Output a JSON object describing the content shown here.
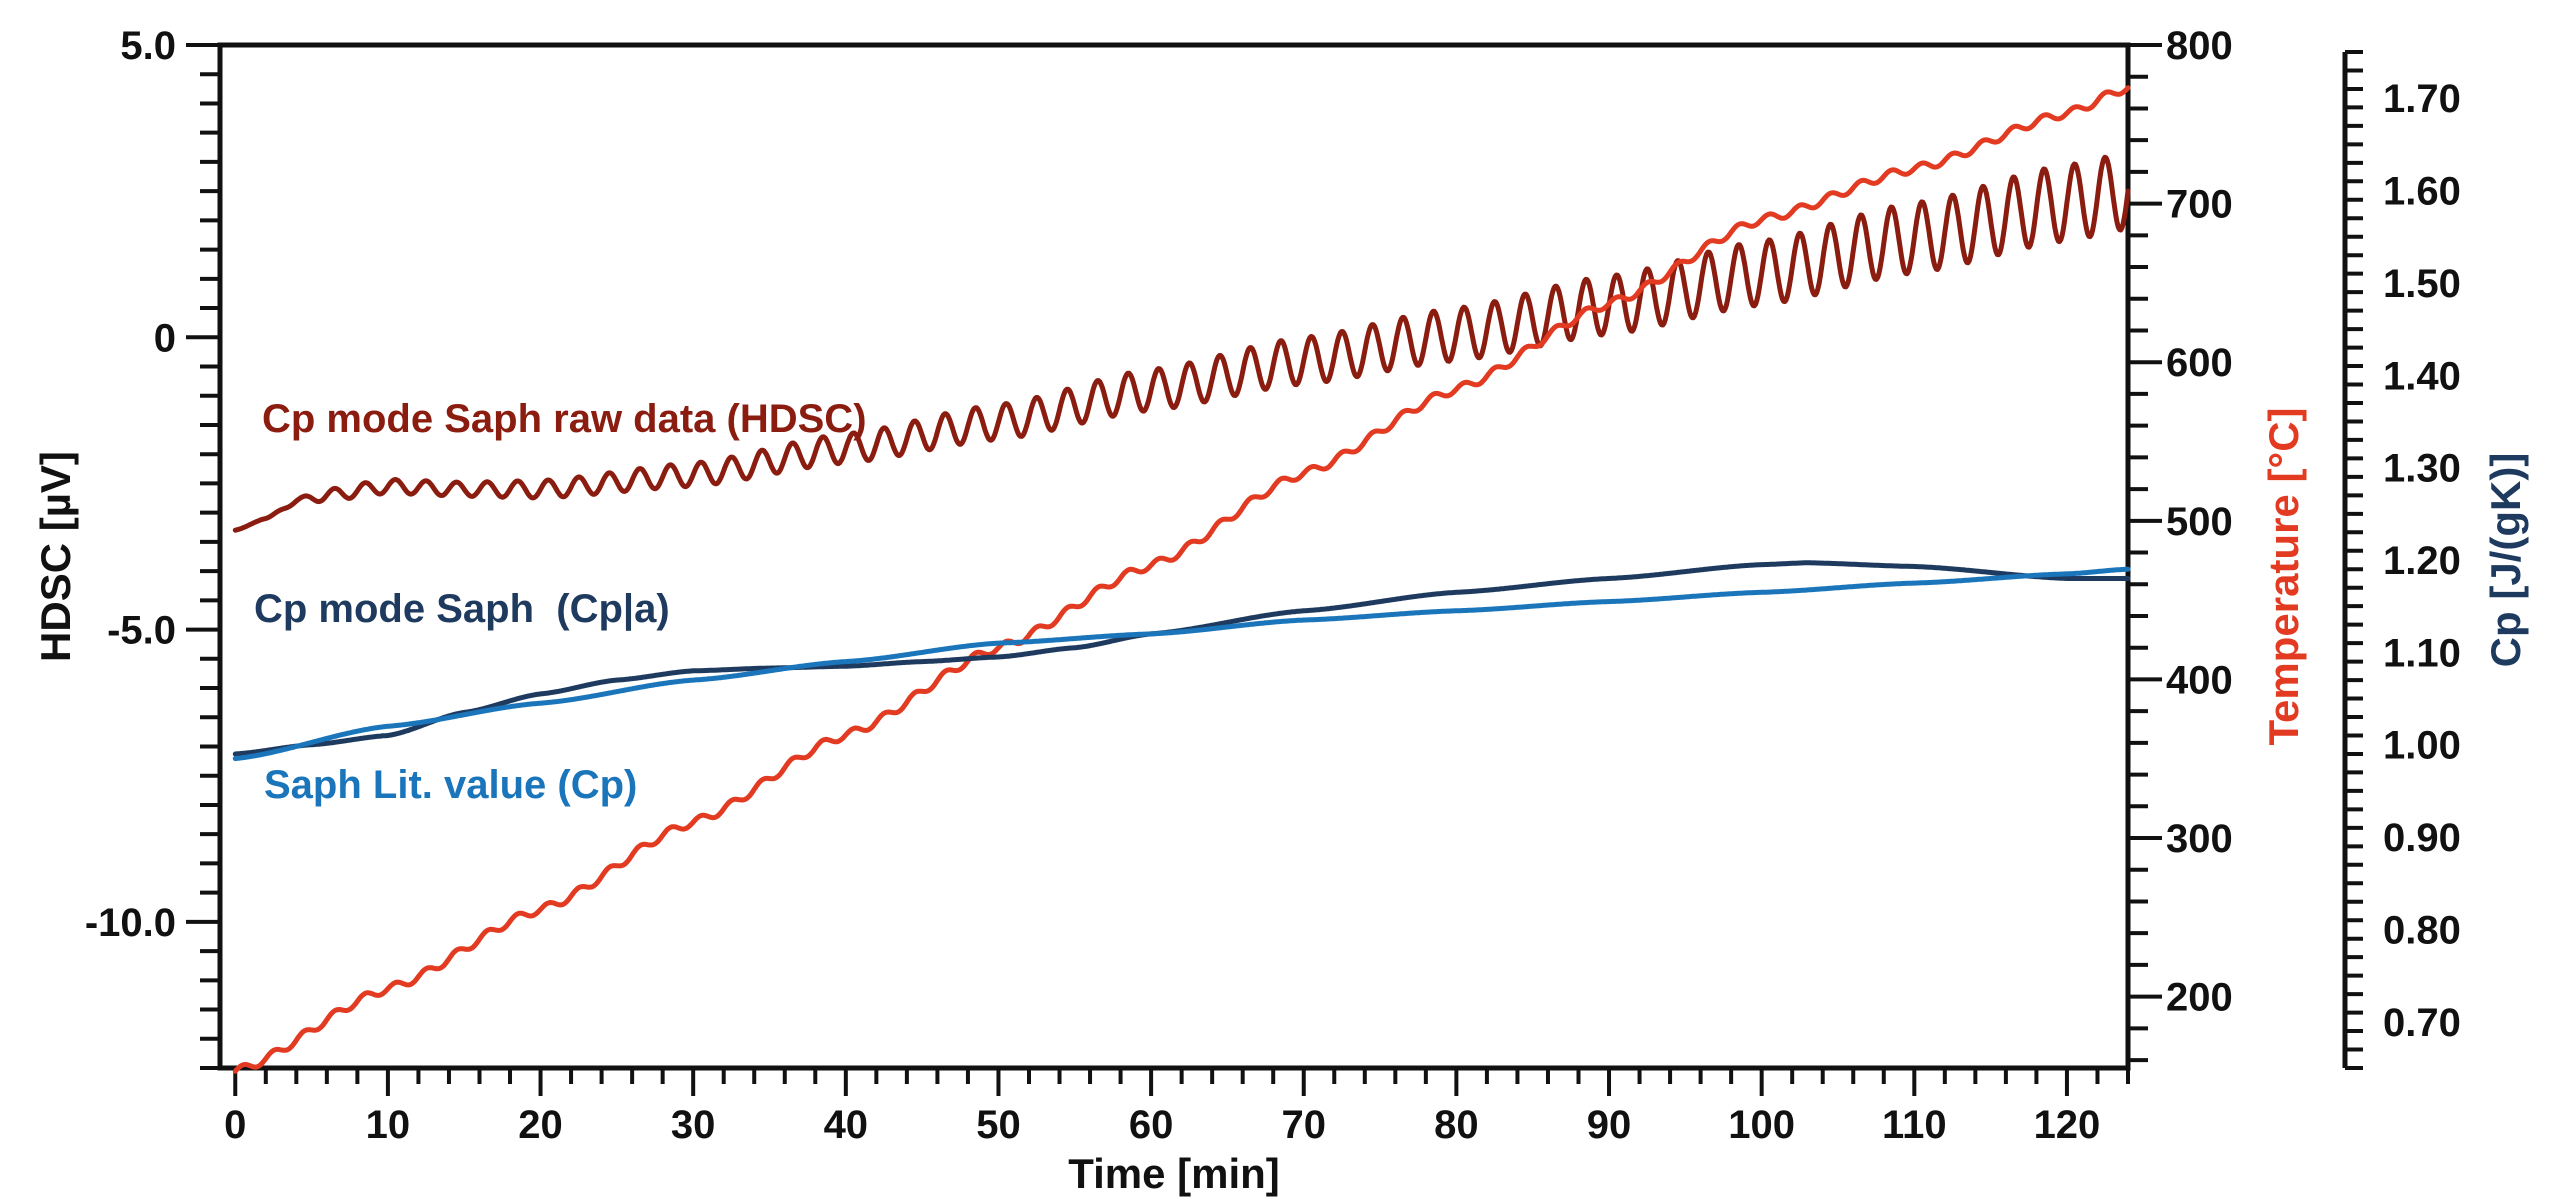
{
  "chart_data": {
    "type": "line",
    "x_axis": {
      "label": "Time [min]",
      "range": [
        -1,
        124
      ],
      "ticks": [
        0,
        10,
        20,
        30,
        40,
        50,
        60,
        70,
        80,
        90,
        100,
        110,
        120
      ],
      "minor_step": 2
    },
    "y_axes": [
      {
        "id": "hdsc",
        "side": "left",
        "label": "HDSC [µV]",
        "range": [
          -12.5,
          5.0
        ],
        "ticks": [
          5.0,
          0,
          -5.0,
          -10.0
        ],
        "tick_labels": [
          "5.0",
          "0",
          "-5.0",
          "-10.0"
        ],
        "minor_step": 0.5,
        "color": "#111111"
      },
      {
        "id": "temp",
        "side": "right",
        "label": "Temperature [°C]",
        "range": [
          155,
          800
        ],
        "ticks": [
          200,
          300,
          400,
          500,
          600,
          700,
          800
        ],
        "tick_labels": [
          "200",
          "300",
          "400",
          "500",
          "600",
          "700",
          "800"
        ],
        "minor_step": 20,
        "color": "#e23b22"
      },
      {
        "id": "cp",
        "side": "right-outer",
        "label": "Cp [J/(gK)]",
        "range": [
          0.65,
          1.75
        ],
        "ticks": [
          0.7,
          0.8,
          0.9,
          1.0,
          1.1,
          1.2,
          1.3,
          1.4,
          1.5,
          1.6,
          1.7
        ],
        "tick_labels": [
          "0.70",
          "0.80",
          "0.90",
          "1.00",
          "1.10",
          "1.20",
          "1.30",
          "1.40",
          "1.50",
          "1.60",
          "1.70"
        ],
        "minor_step": 0.02,
        "color": "#1e3a5f"
      }
    ],
    "series": [
      {
        "name": "Cp mode Saph raw data (HDSC)",
        "axis": "hdsc",
        "color": "#8b1c10",
        "oscillation_period_min": 2.0,
        "x": [
          0,
          2,
          4,
          6,
          10,
          15,
          20,
          30,
          40,
          50,
          60,
          70,
          80,
          90,
          100,
          110,
          120,
          124
        ],
        "y": [
          -3.3,
          -3.1,
          -2.8,
          -2.7,
          -2.55,
          -2.6,
          -2.6,
          -2.35,
          -1.9,
          -1.45,
          -0.9,
          -0.4,
          0.05,
          0.55,
          1.1,
          1.7,
          2.3,
          2.5
        ],
        "amplitude": [
          0,
          0,
          0.05,
          0.1,
          0.12,
          0.12,
          0.15,
          0.2,
          0.25,
          0.3,
          0.35,
          0.4,
          0.45,
          0.5,
          0.55,
          0.6,
          0.65,
          0.65
        ]
      },
      {
        "name": "Temperature",
        "axis": "temp",
        "color": "#e23b22",
        "x": [
          0,
          10,
          20,
          30,
          40,
          50,
          60,
          70,
          80,
          90,
          100,
          110,
          120,
          124
        ],
        "y": [
          153,
          205,
          255,
          310,
          365,
          420,
          472,
          530,
          583,
          637,
          690,
          722,
          757,
          773
        ]
      },
      {
        "name": "Cp mode Saph  (Cp|a)",
        "axis": "cp",
        "color": "#1e3a5f",
        "x": [
          0,
          5,
          10,
          15,
          20,
          25,
          30,
          35,
          40,
          45,
          50,
          55,
          60,
          70,
          80,
          90,
          100,
          103,
          110,
          120,
          124
        ],
        "y": [
          0.99,
          1.0,
          1.01,
          1.035,
          1.055,
          1.07,
          1.08,
          1.083,
          1.085,
          1.09,
          1.095,
          1.105,
          1.12,
          1.145,
          1.165,
          1.18,
          1.195,
          1.197,
          1.193,
          1.18,
          1.18
        ]
      },
      {
        "name": "Saph Lit. value (Cp)",
        "axis": "cp",
        "color": "#1a75bb",
        "x": [
          0,
          10,
          20,
          30,
          40,
          50,
          60,
          70,
          80,
          90,
          100,
          110,
          120,
          124
        ],
        "y": [
          0.985,
          1.02,
          1.045,
          1.07,
          1.09,
          1.11,
          1.12,
          1.135,
          1.145,
          1.155,
          1.165,
          1.175,
          1.185,
          1.19
        ]
      }
    ],
    "annotations": [
      {
        "text": "Cp mode Saph raw data (HDSC)",
        "color": "#8b1c10",
        "anchor": "upper-left of raw data curve"
      },
      {
        "text": "Cp mode Saph  (Cp|a)",
        "color": "#1e3a5f",
        "anchor": "left, above Cp curves"
      },
      {
        "text": "Saph Lit. value (Cp)",
        "color": "#1a75bb",
        "anchor": "left, below Cp curves"
      }
    ],
    "grid": false,
    "legend": "none (inline labels)"
  }
}
